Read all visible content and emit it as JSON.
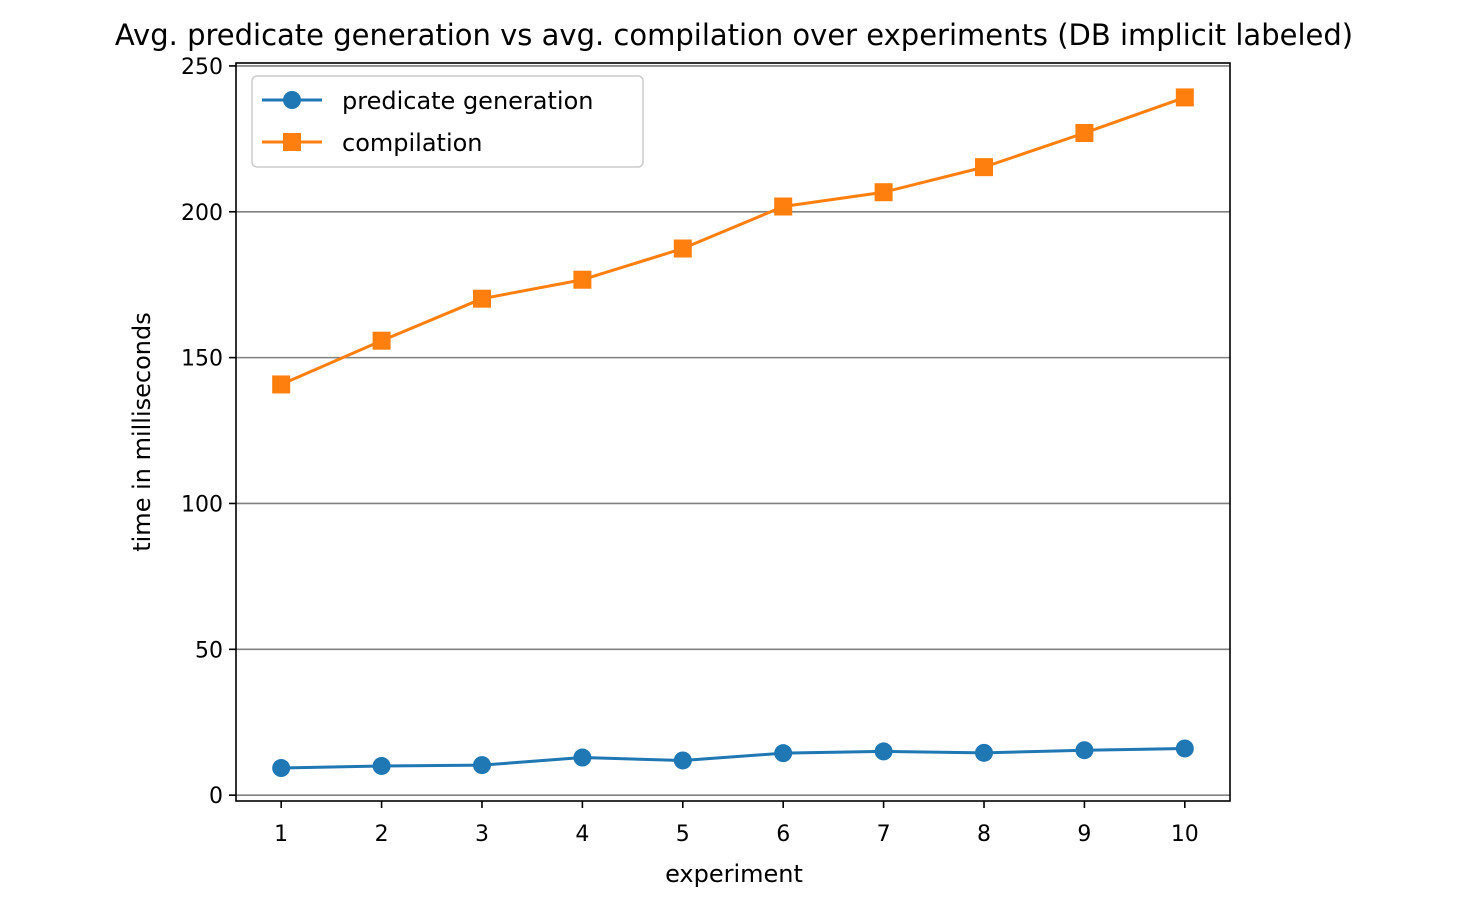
{
  "chart_data": {
    "type": "line",
    "title": "Avg. predicate generation vs avg. compilation over experiments (DB implicit labeled)",
    "xlabel": "experiment",
    "ylabel": "time in milliseconds",
    "x": [
      1,
      2,
      3,
      4,
      5,
      6,
      7,
      8,
      9,
      10
    ],
    "xlim": [
      0.55,
      10.45
    ],
    "ylim": [
      -2,
      251
    ],
    "yticks": [
      0,
      50,
      100,
      150,
      200,
      250
    ],
    "grid": "horizontal",
    "legend_position": "top-left",
    "series": [
      {
        "name": "predicate generation",
        "marker": "circle",
        "color": "#1f77b4",
        "values": [
          9.3,
          10.0,
          10.3,
          12.9,
          11.9,
          14.4,
          15.0,
          14.5,
          15.4,
          16.0
        ]
      },
      {
        "name": "compilation",
        "marker": "square",
        "color": "#ff7f0e",
        "values": [
          140.8,
          155.8,
          170.2,
          176.7,
          187.4,
          201.8,
          206.7,
          215.3,
          227.0,
          239.2
        ]
      }
    ]
  }
}
